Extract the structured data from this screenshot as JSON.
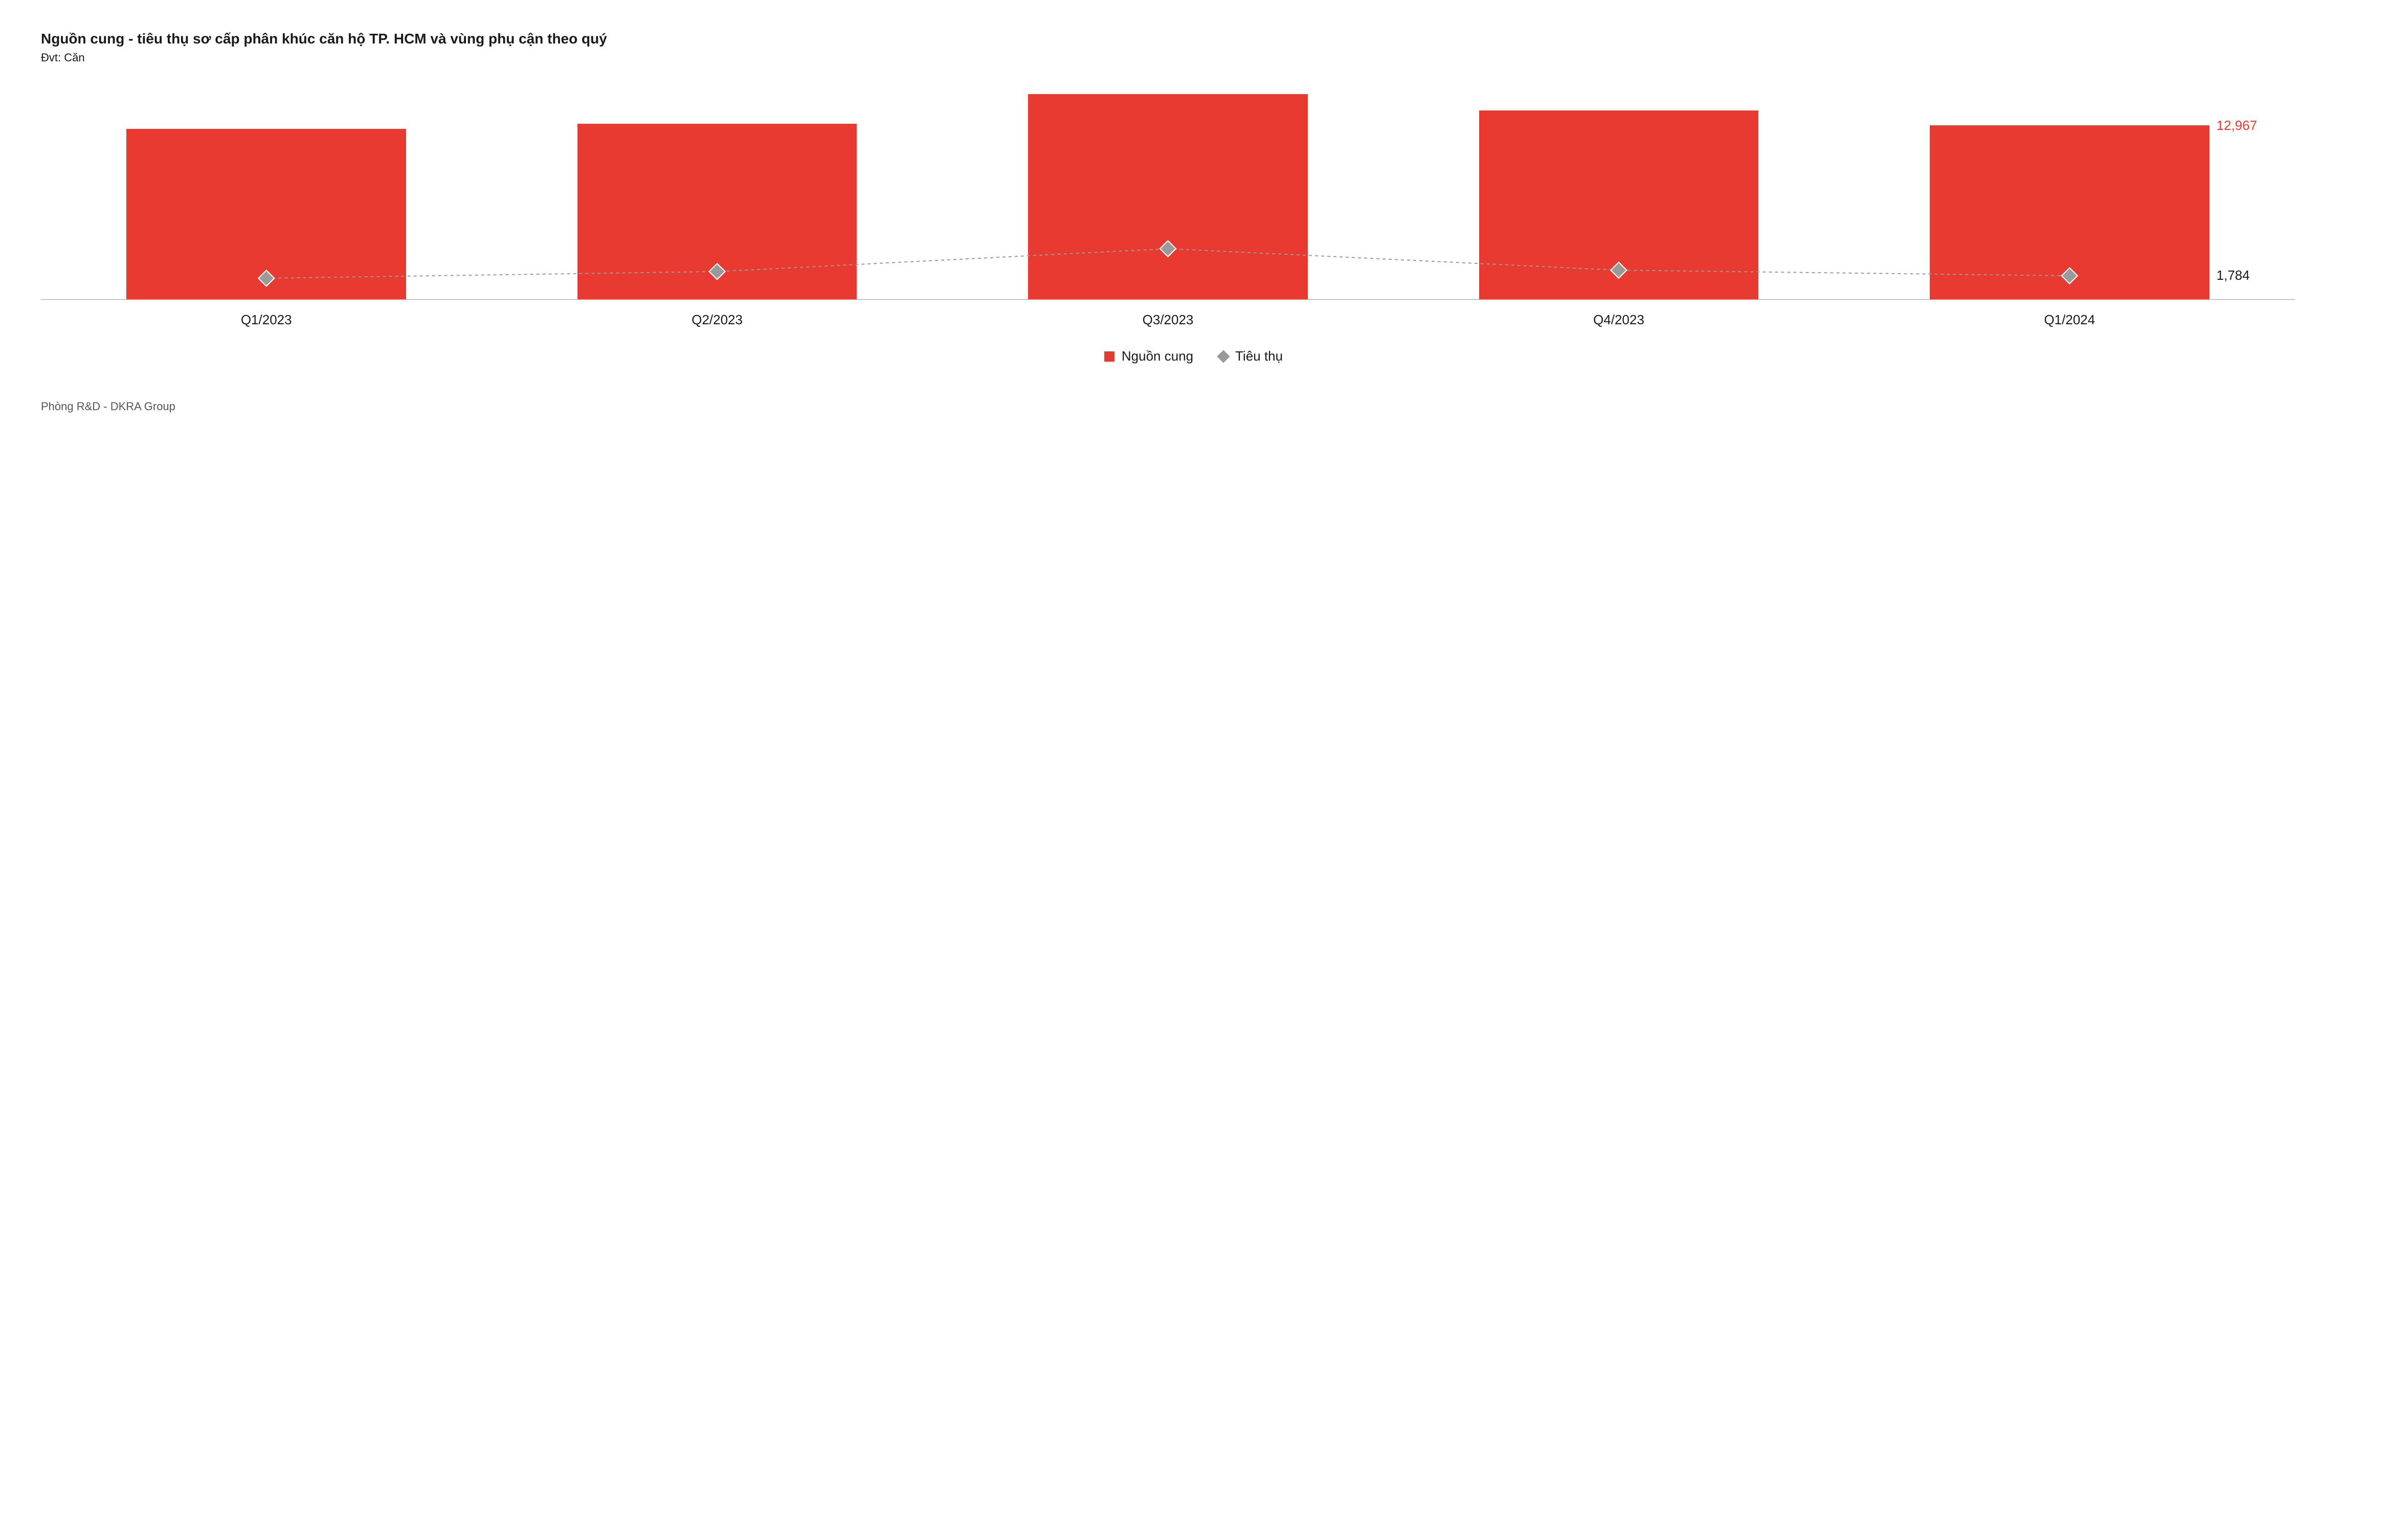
{
  "title": "Nguồn cung - tiêu thụ sơ cấp phân khúc căn hộ TP. HCM và vùng phụ cận theo quý",
  "subtitle": "Đvt: Căn",
  "footer": "Phòng R&D - DKRA Group",
  "chart": {
    "type": "bar+line",
    "categories": [
      "Q1/2023",
      "Q2/2023",
      "Q3/2023",
      "Q4/2023",
      "Q1/2024"
    ],
    "bar_series": {
      "name": "Nguồn cung",
      "values": [
        12700,
        13100,
        15300,
        14100,
        12967
      ],
      "color": "#e83a30"
    },
    "line_series": {
      "name": "Tiêu thụ",
      "values": [
        1600,
        2100,
        3800,
        2200,
        1784
      ],
      "color": "#9a9a9a",
      "marker": "diamond",
      "marker_fill": "#9a9a9a",
      "marker_stroke": "#ffffff",
      "marker_size": 22,
      "dash": "6,6",
      "line_width": 2
    },
    "ylim": [
      0,
      16000
    ],
    "bar_width_pct": 62,
    "background_color": "#ffffff",
    "title_fontsize": 28,
    "label_fontsize": 26,
    "axis_line_color": "#999999",
    "callouts": [
      {
        "series": "bar",
        "index": 4,
        "text": "12,967",
        "color": "#e83a30"
      },
      {
        "series": "line",
        "index": 4,
        "text": "1,784",
        "color": "#1a1a1a"
      }
    ]
  },
  "legend": {
    "items": [
      {
        "label": "Nguồn cung",
        "kind": "bar",
        "color": "#e83a30"
      },
      {
        "label": "Tiêu thụ",
        "kind": "diamond",
        "color": "#9a9a9a"
      }
    ]
  }
}
